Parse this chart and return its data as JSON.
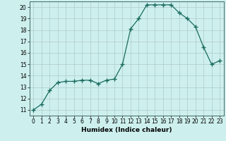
{
  "x": [
    0,
    1,
    2,
    3,
    4,
    5,
    6,
    7,
    8,
    9,
    10,
    11,
    12,
    13,
    14,
    15,
    16,
    17,
    18,
    19,
    20,
    21,
    22,
    23
  ],
  "y": [
    11.0,
    11.5,
    12.7,
    13.4,
    13.5,
    13.5,
    13.6,
    13.6,
    13.3,
    13.6,
    13.7,
    15.0,
    18.1,
    19.0,
    20.2,
    20.2,
    20.2,
    20.2,
    19.5,
    19.0,
    18.3,
    16.5,
    15.0,
    15.3
  ],
  "line_color": "#1a6b5e",
  "marker": "+",
  "marker_size": 4,
  "bg_color": "#cdf0ee",
  "grid_color": "#b0c8c8",
  "xlabel": "Humidex (Indice chaleur)",
  "xlim": [
    -0.5,
    23.5
  ],
  "ylim": [
    10.5,
    20.5
  ],
  "yticks": [
    11,
    12,
    13,
    14,
    15,
    16,
    17,
    18,
    19,
    20
  ],
  "xticks": [
    0,
    1,
    2,
    3,
    4,
    5,
    6,
    7,
    8,
    9,
    10,
    11,
    12,
    13,
    14,
    15,
    16,
    17,
    18,
    19,
    20,
    21,
    22,
    23
  ],
  "label_fontsize": 6.5,
  "tick_fontsize": 5.5
}
